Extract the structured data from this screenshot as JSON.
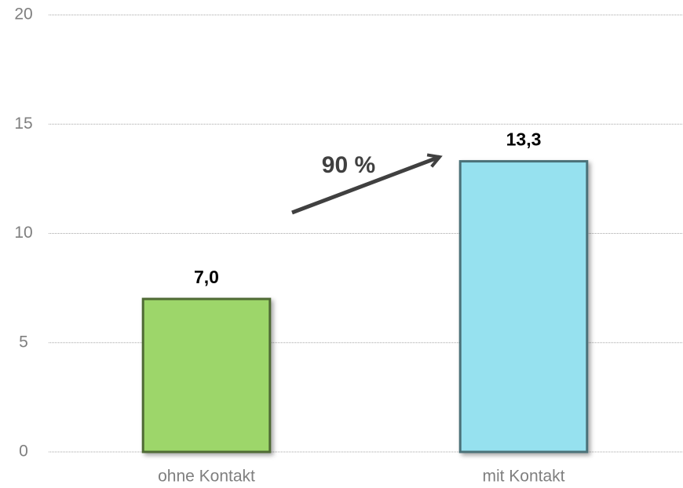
{
  "chart_data": {
    "type": "bar",
    "categories": [
      "ohne Kontakt",
      "mit Kontakt"
    ],
    "values": [
      7.0,
      13.3
    ],
    "value_labels": [
      "7,0",
      "13,3"
    ],
    "colors": [
      "#9dd66a",
      "#96e1ef"
    ],
    "annotation": "90 %",
    "ylim": [
      0,
      20
    ],
    "yticks": [
      0,
      5,
      10,
      15,
      20
    ],
    "grid": true
  }
}
